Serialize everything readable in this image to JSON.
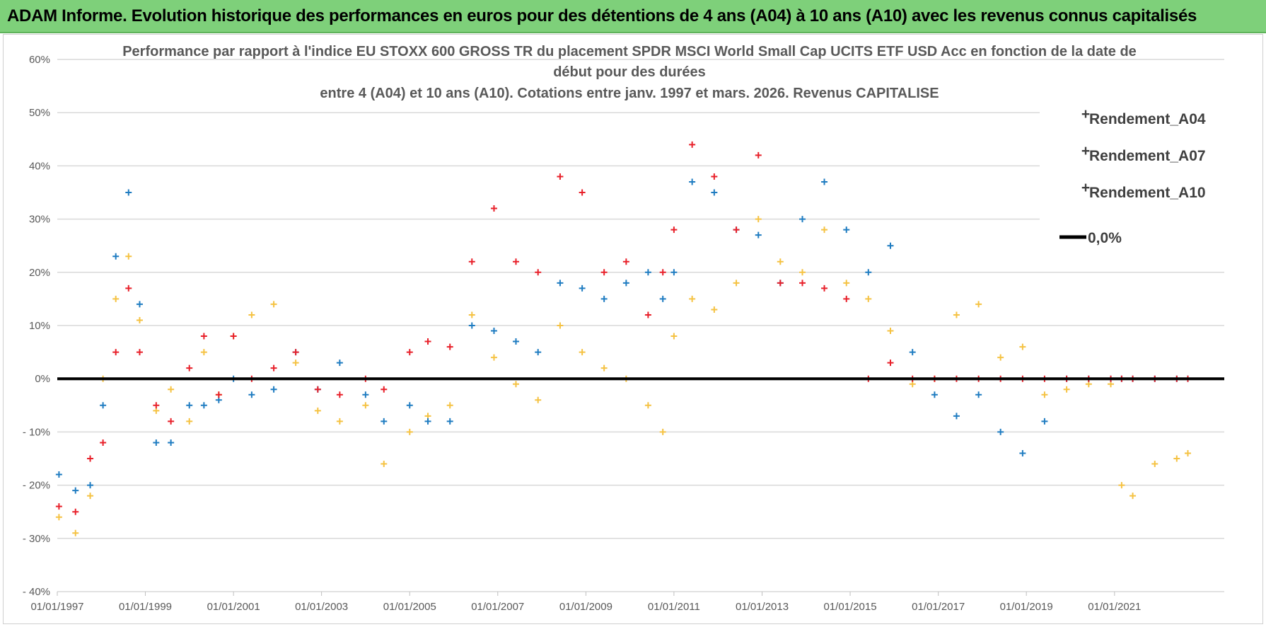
{
  "banner": {
    "title": "ADAM Informe. Evolution historique des performances en euros pour des détentions de 4 ans (A04) à 10 ans (A10) avec les revenus connus capitalisés"
  },
  "chart_data": {
    "type": "scatter",
    "title_lines": [
      "Performance par rapport à l'indice EU STOXX 600 GROSS TR  du placement SPDR MSCI World Small Cap UCITS ETF USD Acc en fonction de la date de",
      "début pour des durées",
      "entre 4 (A04) et 10 ans (A10).  Cotations entre janv. 1997 et mars. 2026. Revenus CAPITALISE"
    ],
    "xlabel": "",
    "ylabel": "",
    "x_range": [
      "1997-01-01",
      "2023-06-30"
    ],
    "ylim": [
      -40,
      60
    ],
    "y_ticks": [
      60,
      50,
      40,
      30,
      20,
      10,
      0,
      -10,
      -20,
      -30,
      -40
    ],
    "y_tick_labels": [
      "60%",
      "50%",
      "40%",
      "30%",
      "20%",
      "10%",
      "0%",
      "- 10%",
      "- 20%",
      "- 30%",
      "- 40%"
    ],
    "x_tick_labels": [
      "01/01/1997",
      "01/01/1999",
      "01/01/2001",
      "01/01/2003",
      "01/01/2005",
      "01/01/2007",
      "01/01/2009",
      "01/01/2011",
      "01/01/2013",
      "01/01/2015",
      "01/01/2017",
      "01/01/2019",
      "01/01/2021"
    ],
    "x_tick_dates": [
      "1997-01-01",
      "1999-01-01",
      "2001-01-01",
      "2003-01-01",
      "2005-01-01",
      "2007-01-01",
      "2009-01-01",
      "2011-01-01",
      "2013-01-01",
      "2015-01-01",
      "2017-01-01",
      "2019-01-01",
      "2021-01-01"
    ],
    "grid": "horizontal",
    "legend_position": "top-right",
    "reference_line": {
      "label": "0,0%",
      "y": 0,
      "color": "#000000"
    },
    "series": [
      {
        "name": "Rendement_A04",
        "color": "#f5c242",
        "points": [
          [
            "1997-01-15",
            -26
          ],
          [
            "1997-06-01",
            -29
          ],
          [
            "1997-10-01",
            -22
          ],
          [
            "1998-01-15",
            0
          ],
          [
            "1998-05-01",
            15
          ],
          [
            "1998-08-15",
            23
          ],
          [
            "1998-11-15",
            11
          ],
          [
            "1999-04-01",
            -6
          ],
          [
            "1999-08-01",
            -2
          ],
          [
            "2000-01-01",
            -8
          ],
          [
            "2000-05-01",
            5
          ],
          [
            "2000-09-01",
            -3
          ],
          [
            "2001-01-01",
            8
          ],
          [
            "2001-06-01",
            12
          ],
          [
            "2001-12-01",
            14
          ],
          [
            "2002-06-01",
            3
          ],
          [
            "2002-12-01",
            -6
          ],
          [
            "2003-06-01",
            -8
          ],
          [
            "2004-01-01",
            -5
          ],
          [
            "2004-06-01",
            -16
          ],
          [
            "2005-01-01",
            -10
          ],
          [
            "2005-06-01",
            -7
          ],
          [
            "2005-12-01",
            -5
          ],
          [
            "2006-06-01",
            12
          ],
          [
            "2006-12-01",
            4
          ],
          [
            "2007-06-01",
            -1
          ],
          [
            "2007-12-01",
            -4
          ],
          [
            "2008-06-01",
            10
          ],
          [
            "2008-12-01",
            5
          ],
          [
            "2009-06-01",
            2
          ],
          [
            "2009-12-01",
            0
          ],
          [
            "2010-06-01",
            -5
          ],
          [
            "2010-10-01",
            -10
          ],
          [
            "2011-01-01",
            8
          ],
          [
            "2011-06-01",
            15
          ],
          [
            "2011-12-01",
            13
          ],
          [
            "2012-06-01",
            18
          ],
          [
            "2012-12-01",
            30
          ],
          [
            "2013-06-01",
            22
          ],
          [
            "2013-12-01",
            20
          ],
          [
            "2014-06-01",
            28
          ],
          [
            "2014-12-01",
            18
          ],
          [
            "2015-06-01",
            15
          ],
          [
            "2015-12-01",
            9
          ],
          [
            "2016-06-01",
            -1
          ],
          [
            "2016-12-01",
            0
          ],
          [
            "2017-06-01",
            12
          ],
          [
            "2017-12-01",
            14
          ],
          [
            "2018-06-01",
            4
          ],
          [
            "2018-12-01",
            6
          ],
          [
            "2019-06-01",
            -3
          ],
          [
            "2019-12-01",
            -2
          ],
          [
            "2020-06-01",
            -1
          ],
          [
            "2020-12-01",
            -1
          ],
          [
            "2021-03-01",
            -20
          ],
          [
            "2021-06-01",
            -22
          ],
          [
            "2021-12-01",
            -16
          ],
          [
            "2022-06-01",
            -15
          ],
          [
            "2022-09-01",
            -14
          ]
        ]
      },
      {
        "name": "Rendement_A07",
        "color": "#1f7cc1",
        "points": [
          [
            "1997-01-15",
            -18
          ],
          [
            "1997-06-01",
            -21
          ],
          [
            "1997-10-01",
            -20
          ],
          [
            "1998-01-15",
            -5
          ],
          [
            "1998-05-01",
            23
          ],
          [
            "1998-08-15",
            35
          ],
          [
            "1998-11-15",
            14
          ],
          [
            "1999-04-01",
            -12
          ],
          [
            "1999-08-01",
            -12
          ],
          [
            "2000-01-01",
            -5
          ],
          [
            "2000-05-01",
            -5
          ],
          [
            "2000-09-01",
            -4
          ],
          [
            "2001-01-01",
            0
          ],
          [
            "2001-06-01",
            -3
          ],
          [
            "2001-12-01",
            -2
          ],
          [
            "2002-06-01",
            5
          ],
          [
            "2002-12-01",
            -2
          ],
          [
            "2003-06-01",
            3
          ],
          [
            "2004-01-01",
            -3
          ],
          [
            "2004-06-01",
            -8
          ],
          [
            "2005-01-01",
            -5
          ],
          [
            "2005-06-01",
            -8
          ],
          [
            "2005-12-01",
            -8
          ],
          [
            "2006-06-01",
            10
          ],
          [
            "2006-12-01",
            9
          ],
          [
            "2007-06-01",
            7
          ],
          [
            "2007-12-01",
            5
          ],
          [
            "2008-06-01",
            18
          ],
          [
            "2008-12-01",
            17
          ],
          [
            "2009-06-01",
            15
          ],
          [
            "2009-12-01",
            18
          ],
          [
            "2010-06-01",
            20
          ],
          [
            "2010-10-01",
            15
          ],
          [
            "2011-01-01",
            20
          ],
          [
            "2011-06-01",
            37
          ],
          [
            "2011-12-01",
            35
          ],
          [
            "2012-06-01",
            28
          ],
          [
            "2012-12-01",
            27
          ],
          [
            "2013-06-01",
            18
          ],
          [
            "2013-12-01",
            30
          ],
          [
            "2014-06-01",
            37
          ],
          [
            "2014-12-01",
            28
          ],
          [
            "2015-06-01",
            20
          ],
          [
            "2015-12-01",
            25
          ],
          [
            "2016-06-01",
            5
          ],
          [
            "2016-12-01",
            -3
          ],
          [
            "2017-06-01",
            -7
          ],
          [
            "2017-12-01",
            -3
          ],
          [
            "2018-06-01",
            -10
          ],
          [
            "2018-12-01",
            -14
          ],
          [
            "2019-06-01",
            -8
          ],
          [
            "2019-12-01",
            0
          ],
          [
            "2020-06-01",
            0
          ],
          [
            "2020-12-01",
            0
          ],
          [
            "2021-03-01",
            0
          ],
          [
            "2021-06-01",
            0
          ],
          [
            "2021-12-01",
            0
          ],
          [
            "2022-06-01",
            0
          ],
          [
            "2022-09-01",
            0
          ]
        ]
      },
      {
        "name": "Rendement_A10",
        "color": "#e8202a",
        "points": [
          [
            "1997-01-15",
            -24
          ],
          [
            "1997-06-01",
            -25
          ],
          [
            "1997-10-01",
            -15
          ],
          [
            "1998-01-15",
            -12
          ],
          [
            "1998-05-01",
            5
          ],
          [
            "1998-08-15",
            17
          ],
          [
            "1998-11-15",
            5
          ],
          [
            "1999-04-01",
            -5
          ],
          [
            "1999-08-01",
            -8
          ],
          [
            "2000-01-01",
            2
          ],
          [
            "2000-05-01",
            8
          ],
          [
            "2000-09-01",
            -3
          ],
          [
            "2001-01-01",
            8
          ],
          [
            "2001-06-01",
            0
          ],
          [
            "2001-12-01",
            2
          ],
          [
            "2002-06-01",
            5
          ],
          [
            "2002-12-01",
            -2
          ],
          [
            "2003-06-01",
            -3
          ],
          [
            "2004-01-01",
            0
          ],
          [
            "2004-06-01",
            -2
          ],
          [
            "2005-01-01",
            5
          ],
          [
            "2005-06-01",
            7
          ],
          [
            "2005-12-01",
            6
          ],
          [
            "2006-06-01",
            22
          ],
          [
            "2006-12-01",
            32
          ],
          [
            "2007-06-01",
            22
          ],
          [
            "2007-12-01",
            20
          ],
          [
            "2008-06-01",
            38
          ],
          [
            "2008-12-01",
            35
          ],
          [
            "2009-06-01",
            20
          ],
          [
            "2009-12-01",
            22
          ],
          [
            "2010-06-01",
            12
          ],
          [
            "2010-10-01",
            20
          ],
          [
            "2011-01-01",
            28
          ],
          [
            "2011-06-01",
            44
          ],
          [
            "2011-12-01",
            38
          ],
          [
            "2012-06-01",
            28
          ],
          [
            "2012-12-01",
            42
          ],
          [
            "2013-06-01",
            18
          ],
          [
            "2013-12-01",
            18
          ],
          [
            "2014-06-01",
            17
          ],
          [
            "2014-12-01",
            15
          ],
          [
            "2015-06-01",
            0
          ],
          [
            "2015-12-01",
            3
          ],
          [
            "2016-06-01",
            0
          ],
          [
            "2016-12-01",
            0
          ],
          [
            "2017-06-01",
            0
          ],
          [
            "2017-12-01",
            0
          ],
          [
            "2018-06-01",
            0
          ],
          [
            "2018-12-01",
            0
          ],
          [
            "2019-06-01",
            0
          ],
          [
            "2019-12-01",
            0
          ],
          [
            "2020-06-01",
            0
          ],
          [
            "2020-12-01",
            0
          ],
          [
            "2021-03-01",
            0
          ],
          [
            "2021-06-01",
            0
          ],
          [
            "2021-12-01",
            0
          ],
          [
            "2022-06-01",
            0
          ],
          [
            "2022-09-01",
            0
          ]
        ]
      }
    ]
  }
}
